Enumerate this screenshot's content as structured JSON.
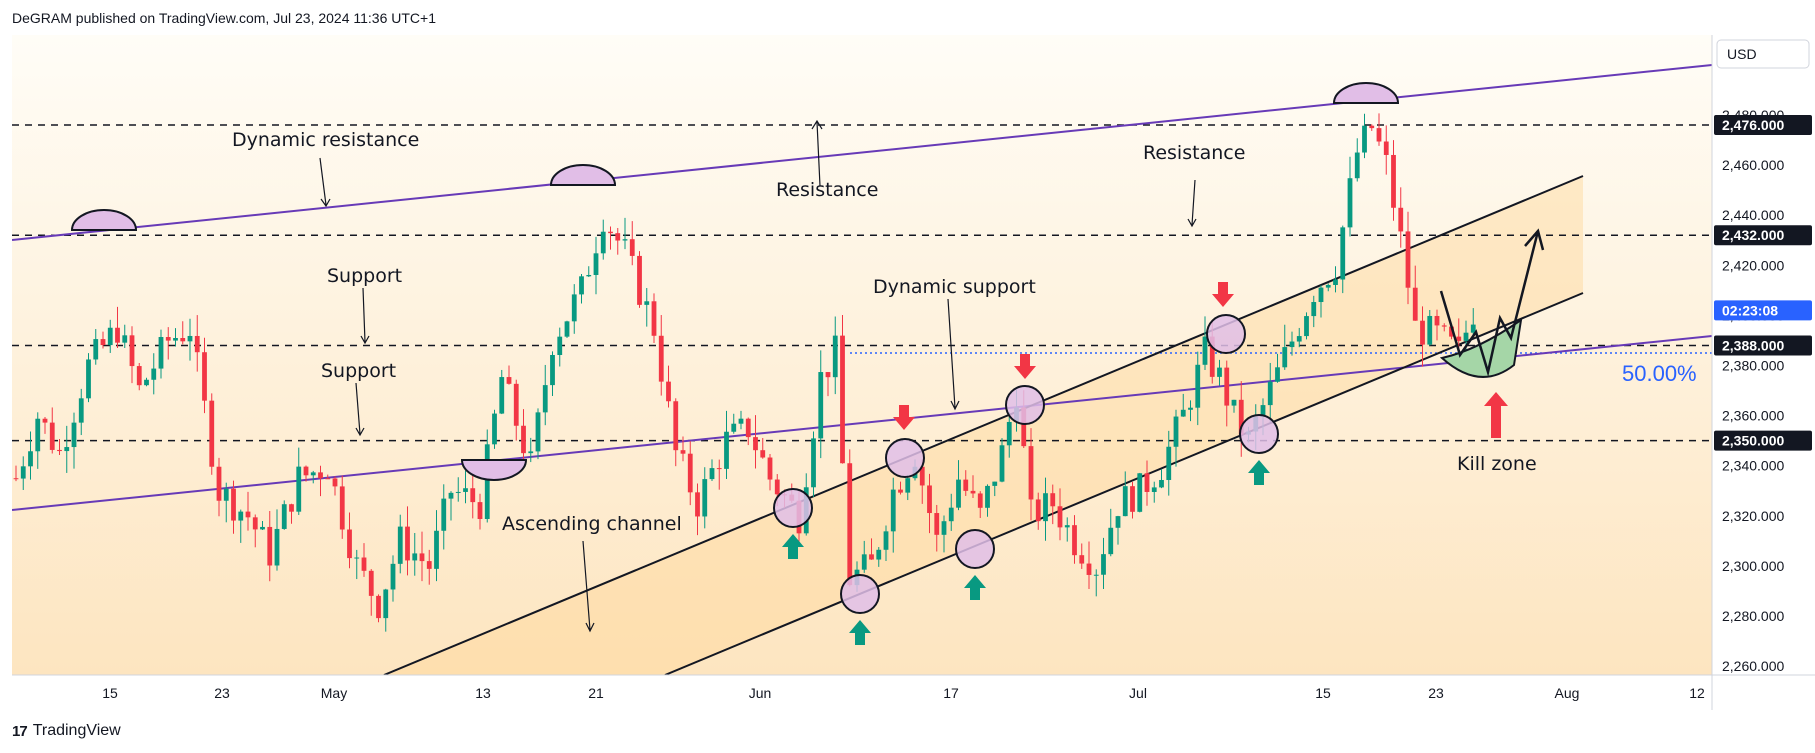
{
  "header": {
    "publisher_line": "DeGRAM published on TradingView.com, Jul 23, 2024 11:36 UTC+1"
  },
  "footer": {
    "brand": "TradingView"
  },
  "colors": {
    "up_candle": "#089981",
    "down_candle": "#f23645",
    "trendline": "#673ab7",
    "channel": "#131722",
    "marker_circle": "#e1bee7",
    "arrow_up": "#089981",
    "arrow_down": "#f23645",
    "kill_zone": "#a5d6a7",
    "fib_line": "#2962ff",
    "price_label_bg": "#131722",
    "current_label_bg": "#2962ff"
  },
  "chart_data": {
    "type": "candlestick",
    "symbol_currency": "USD",
    "x_axis": {
      "tick_labels": [
        "15",
        "23",
        "May",
        "13",
        "21",
        "Jun",
        "17",
        "Jul",
        "15",
        "23",
        "Aug",
        "12"
      ]
    },
    "y_axis": {
      "range": [
        2255,
        2493
      ],
      "tick_labels": [
        "2,480.000",
        "2,460.000",
        "2,440.000",
        "2,420.000",
        "2,400.000",
        "2,380.000",
        "2,360.000",
        "2,340.000",
        "2,320.000",
        "2,300.000",
        "2,280.000",
        "2,260.000"
      ]
    },
    "horizontal_levels": [
      {
        "value": 2476,
        "label": "2,476.000"
      },
      {
        "value": 2432,
        "label": "2,432.000"
      },
      {
        "value": 2388,
        "label": "2,388.000"
      },
      {
        "value": 2350,
        "label": "2,350.000"
      }
    ],
    "current_price": {
      "value": 2402,
      "countdown": "02:23:08"
    },
    "fib_level": {
      "value": 2385,
      "label": "50.00%"
    },
    "annotations": [
      "Dynamic resistance",
      "Resistance",
      "Resistance",
      "Support",
      "Support",
      "Dynamic support",
      "Ascending channel",
      "Kill zone"
    ],
    "price_path": [
      [
        0,
        2335
      ],
      [
        3,
        2360
      ],
      [
        6,
        2345
      ],
      [
        10,
        2380
      ],
      [
        14,
        2395
      ],
      [
        17,
        2370
      ],
      [
        21,
        2390
      ],
      [
        24,
        2395
      ],
      [
        28,
        2330
      ],
      [
        32,
        2320
      ],
      [
        35,
        2305
      ],
      [
        39,
        2335
      ],
      [
        43,
        2340
      ],
      [
        47,
        2300
      ],
      [
        50,
        2285
      ],
      [
        53,
        2310
      ],
      [
        57,
        2300
      ],
      [
        60,
        2330
      ],
      [
        64,
        2325
      ],
      [
        67,
        2375
      ],
      [
        71,
        2340
      ],
      [
        74,
        2390
      ],
      [
        78,
        2410
      ],
      [
        81,
        2440
      ],
      [
        84,
        2425
      ],
      [
        88,
        2395
      ],
      [
        91,
        2345
      ],
      [
        94,
        2325
      ],
      [
        98,
        2350
      ],
      [
        101,
        2355
      ],
      [
        104,
        2335
      ],
      [
        108,
        2320
      ],
      [
        111,
        2375
      ],
      [
        113,
        2385
      ],
      [
        115,
        2295
      ],
      [
        118,
        2300
      ],
      [
        121,
        2330
      ],
      [
        124,
        2345
      ],
      [
        127,
        2310
      ],
      [
        130,
        2335
      ],
      [
        133,
        2320
      ],
      [
        136,
        2345
      ],
      [
        138,
        2370
      ],
      [
        140,
        2320
      ],
      [
        143,
        2325
      ],
      [
        146,
        2310
      ],
      [
        149,
        2300
      ],
      [
        152,
        2325
      ],
      [
        155,
        2330
      ],
      [
        158,
        2340
      ],
      [
        161,
        2360
      ],
      [
        164,
        2385
      ],
      [
        166,
        2375
      ],
      [
        168,
        2360
      ],
      [
        170,
        2350
      ],
      [
        173,
        2370
      ],
      [
        176,
        2390
      ],
      [
        179,
        2410
      ],
      [
        182,
        2420
      ],
      [
        185,
        2465
      ],
      [
        187,
        2475
      ],
      [
        189,
        2460
      ],
      [
        191,
        2430
      ],
      [
        193,
        2395
      ],
      [
        196,
        2392
      ],
      [
        199,
        2385
      ],
      [
        201,
        2402
      ]
    ]
  }
}
